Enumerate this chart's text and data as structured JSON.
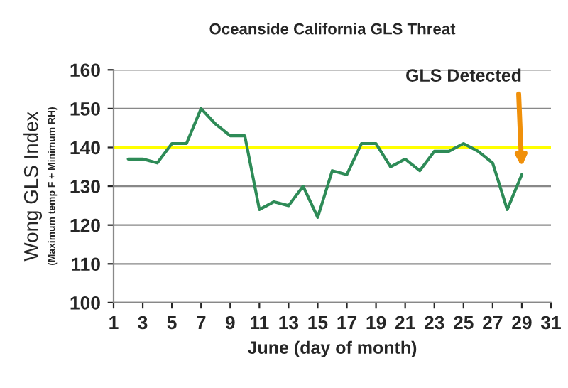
{
  "chart_data": {
    "type": "line",
    "title": "Oceanside California GLS Threat",
    "xlabel": "June (day of month)",
    "ylabel": "Wong GLS Index\n(Maximum temp F + Minimum RH)",
    "x": [
      2,
      3,
      4,
      5,
      6,
      7,
      8,
      9,
      10,
      11,
      12,
      13,
      14,
      15,
      16,
      17,
      18,
      19,
      20,
      21,
      22,
      23,
      24,
      25,
      26,
      27,
      28,
      29
    ],
    "series": [
      {
        "color": "#2e8b57",
        "values": [
          137,
          137,
          136,
          141,
          141,
          150,
          146,
          143,
          143,
          124,
          126,
          125,
          130,
          122,
          134,
          133,
          141,
          141,
          135,
          137,
          134,
          139,
          139,
          141,
          139,
          136,
          124,
          133
        ]
      }
    ],
    "xlim": [
      1,
      31
    ],
    "xticks": [
      1,
      3,
      5,
      7,
      9,
      11,
      13,
      15,
      17,
      19,
      21,
      23,
      25,
      27,
      29,
      31
    ],
    "ylim": [
      100,
      160
    ],
    "yticks": [
      100,
      110,
      120,
      130,
      140,
      150,
      160
    ],
    "ref_lines": [
      {
        "axis": "y",
        "value": 140,
        "color": "#ffff00"
      }
    ],
    "annotations": [
      {
        "text": "GLS Detected",
        "x": 29,
        "y": 134
      }
    ],
    "grid": "y",
    "marker": "none",
    "line_style": "solid"
  }
}
